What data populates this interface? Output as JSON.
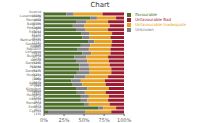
{
  "chart_data": {
    "type": "bar",
    "title": "Chart",
    "orientation": "horizontal",
    "stacked": true,
    "grid": false,
    "legend": "upper right",
    "categories": [
      "Austria (108)",
      "Luxembourg (80)",
      "Romania (579)",
      "Belgium (245)",
      "Portugal (321)",
      "Finland (113)",
      "Spain (618)",
      "Netherlands (174)",
      "Germany (1066)",
      "Czech Republic (287)",
      "Lithuania (44)",
      "Bulgaria (229)",
      "Latvia (128)",
      "Denmark (129)",
      "Poland (517)",
      "Denmark (121)",
      "Hungary (209)",
      "Italy (547)",
      "Austria (51)",
      "United Kingdom (495)",
      "Slovakia (180)",
      "Hungary (134)",
      "Ireland (81)",
      "Romania (47)",
      "Estonia (62)",
      "Cyprus (19)"
    ],
    "series": [
      {
        "name": "Favourable",
        "color": "#4d6e2b",
        "values": [
          0.28,
          0.58,
          0.4,
          0.36,
          0.4,
          0.47,
          0.48,
          0.55,
          0.46,
          0.42,
          0.48,
          0.38,
          0.4,
          0.44,
          0.44,
          0.41,
          0.38,
          0.34,
          0.35,
          0.4,
          0.41,
          0.46,
          0.46,
          0.5,
          0.68,
          0.05
        ]
      },
      {
        "name": "Unknown",
        "color": "#808080",
        "values": [
          0.09,
          0.08,
          0.13,
          0.14,
          0.12,
          0.1,
          0.09,
          0.08,
          0.12,
          0.14,
          0.11,
          0.15,
          0.14,
          0.12,
          0.13,
          0.16,
          0.14,
          0.12,
          0.13,
          0.14,
          0.1,
          0.1,
          0.08,
          0.06,
          0.06,
          0.47
        ]
      },
      {
        "name": "Unfavourable Inadequate",
        "color": "#e8a020",
        "values": [
          0.36,
          0.24,
          0.27,
          0.32,
          0.28,
          0.28,
          0.26,
          0.22,
          0.26,
          0.27,
          0.24,
          0.27,
          0.27,
          0.26,
          0.27,
          0.27,
          0.28,
          0.3,
          0.29,
          0.27,
          0.26,
          0.25,
          0.26,
          0.26,
          0.16,
          0.32
        ]
      },
      {
        "name": "Unfavourable Bad",
        "color": "#9b1c31",
        "values": [
          0.27,
          0.1,
          0.2,
          0.18,
          0.2,
          0.15,
          0.17,
          0.15,
          0.16,
          0.17,
          0.17,
          0.2,
          0.19,
          0.18,
          0.16,
          0.16,
          0.2,
          0.24,
          0.23,
          0.19,
          0.23,
          0.19,
          0.2,
          0.18,
          0.1,
          0.16
        ]
      }
    ],
    "xlim": [
      0,
      1
    ],
    "xticks": [
      {
        "value": 0,
        "label": "0%"
      },
      {
        "value": 0.25,
        "label": "25%"
      },
      {
        "value": 0.5,
        "label": "50%"
      },
      {
        "value": 0.75,
        "label": "75%"
      },
      {
        "value": 1.0,
        "label": "100%"
      }
    ]
  }
}
